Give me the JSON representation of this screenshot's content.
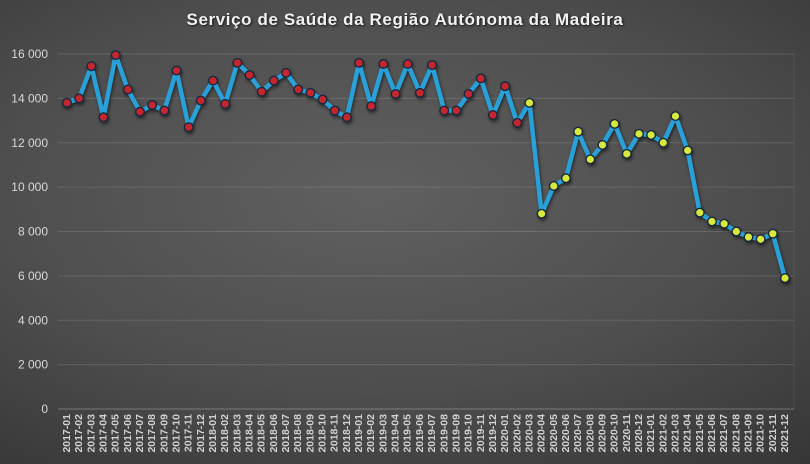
{
  "title": "Serviço de Saúde da Região Autónoma da Madeira",
  "colors": {
    "line": "#2aa0d8",
    "marker_early": "#c5262e",
    "marker_late": "#d7e93c",
    "marker_outline": "#16293e",
    "title_text": "#f2f2f2"
  },
  "chart_data": {
    "type": "line",
    "title": "Serviço de Saúde da Região Autónoma da Madeira",
    "categories": [
      "2017-01",
      "2017-02",
      "2017-03",
      "2017-04",
      "2017-05",
      "2017-06",
      "2017-07",
      "2017-08",
      "2017-09",
      "2017-10",
      "2017-11",
      "2017-12",
      "2018-01",
      "2018-02",
      "2018-03",
      "2018-04",
      "2018-05",
      "2018-06",
      "2018-07",
      "2018-08",
      "2018-09",
      "2018-10",
      "2018-11",
      "2018-12",
      "2019-01",
      "2019-02",
      "2019-03",
      "2019-04",
      "2019-05",
      "2019-06",
      "2019-07",
      "2019-08",
      "2019-09",
      "2019-10",
      "2019-11",
      "2019-12",
      "2020-01",
      "2020-02",
      "2020-03",
      "2020-04",
      "2020-05",
      "2020-06",
      "2020-07",
      "2020-08",
      "2020-09",
      "2020-10",
      "2020-11",
      "2020-12",
      "2021-01",
      "2021-02",
      "2021-03",
      "2021-04",
      "2021-05",
      "2021-06",
      "2021-07",
      "2021-08",
      "2021-09",
      "2021-10",
      "2021-11",
      "2021-12"
    ],
    "values": [
      13800,
      14000,
      15450,
      13150,
      15950,
      14400,
      13400,
      13700,
      13450,
      15250,
      12700,
      13900,
      14800,
      13750,
      15600,
      15050,
      14300,
      14800,
      15150,
      14400,
      14250,
      13950,
      13450,
      13150,
      15600,
      13650,
      15550,
      14200,
      15550,
      14250,
      15500,
      13450,
      13450,
      14200,
      14900,
      13250,
      14550,
      12900,
      13800,
      8800,
      10050,
      10400,
      12500,
      11250,
      11900,
      12850,
      11500,
      12400,
      12350,
      12000,
      13200,
      11650,
      8850,
      8450,
      8350,
      8000,
      7750,
      7650,
      7900,
      5900
    ],
    "ylim": [
      0,
      16000
    ],
    "ytick_step": 2000,
    "ytick_labels": [
      "0",
      "2 000",
      "4 000",
      "6 000",
      "8 000",
      "10 000",
      "12 000",
      "14 000",
      "16 000"
    ],
    "grid": true,
    "legend": false,
    "xlabel": "",
    "ylabel": "",
    "marker_split_category": "2020-03",
    "marker_color_split_index": 38
  }
}
